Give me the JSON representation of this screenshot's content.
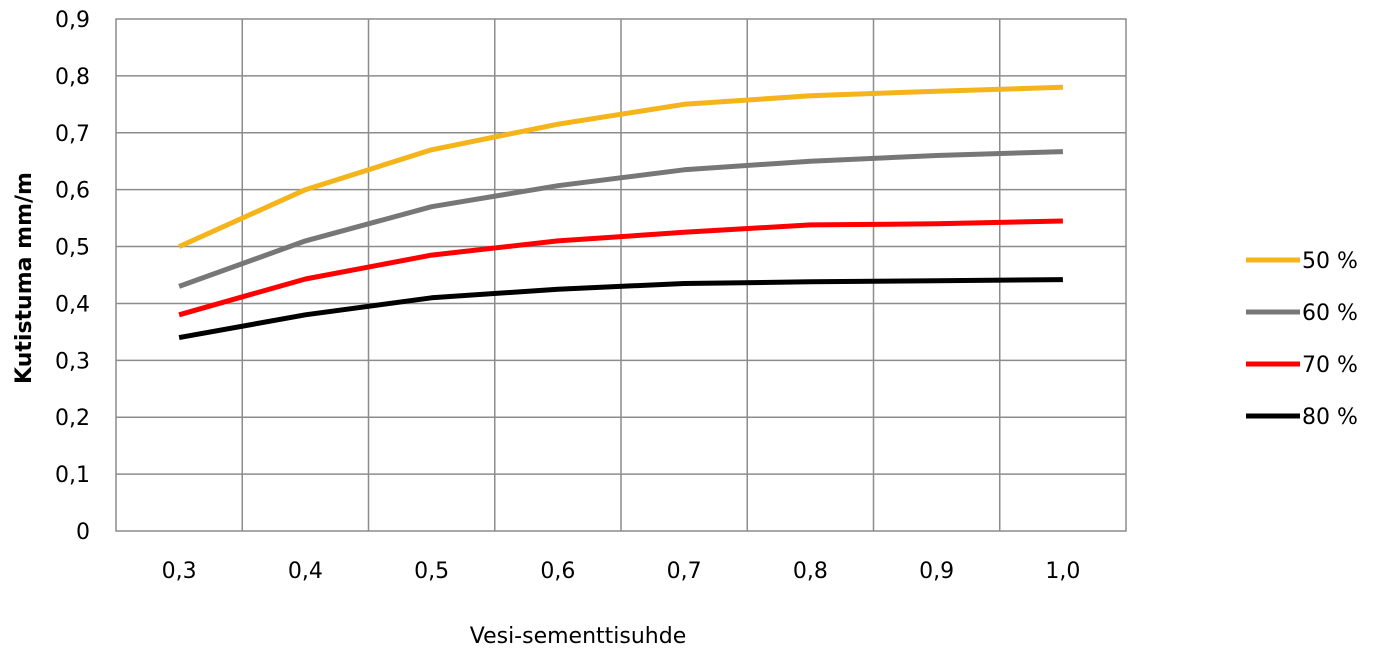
{
  "chart_data": {
    "type": "line",
    "title": "",
    "xlabel": "Vesi-sementtisuhde",
    "ylabel": "Kutistuma mm/m",
    "categories": [
      "0,3",
      "0,4",
      "0,5",
      "0,6",
      "0,7",
      "0,8",
      "0,9",
      "1,0"
    ],
    "x": [
      0.3,
      0.4,
      0.5,
      0.6,
      0.7,
      0.8,
      0.9,
      1.0
    ],
    "ylim": [
      0,
      0.9
    ],
    "yticks": [
      0,
      0.1,
      0.2,
      0.3,
      0.4,
      0.5,
      0.6,
      0.7,
      0.8,
      0.9
    ],
    "ytick_labels": [
      "0",
      "0,1",
      "0,2",
      "0,3",
      "0,4",
      "0,5",
      "0,6",
      "0,7",
      "0,8",
      "0,9"
    ],
    "grid": true,
    "legend_position": "right",
    "series": [
      {
        "name": "50 %",
        "color": "#F4B41A",
        "values": [
          0.5,
          0.6,
          0.67,
          0.715,
          0.75,
          0.765,
          0.773,
          0.78
        ]
      },
      {
        "name": "60 %",
        "color": "#777777",
        "values": [
          0.43,
          0.51,
          0.57,
          0.607,
          0.635,
          0.65,
          0.66,
          0.667
        ]
      },
      {
        "name": "70 %",
        "color": "#FF0000",
        "values": [
          0.38,
          0.443,
          0.485,
          0.51,
          0.525,
          0.538,
          0.54,
          0.545
        ]
      },
      {
        "name": "80 %",
        "color": "#000000",
        "values": [
          0.34,
          0.38,
          0.41,
          0.425,
          0.435,
          0.438,
          0.44,
          0.442
        ]
      }
    ]
  }
}
